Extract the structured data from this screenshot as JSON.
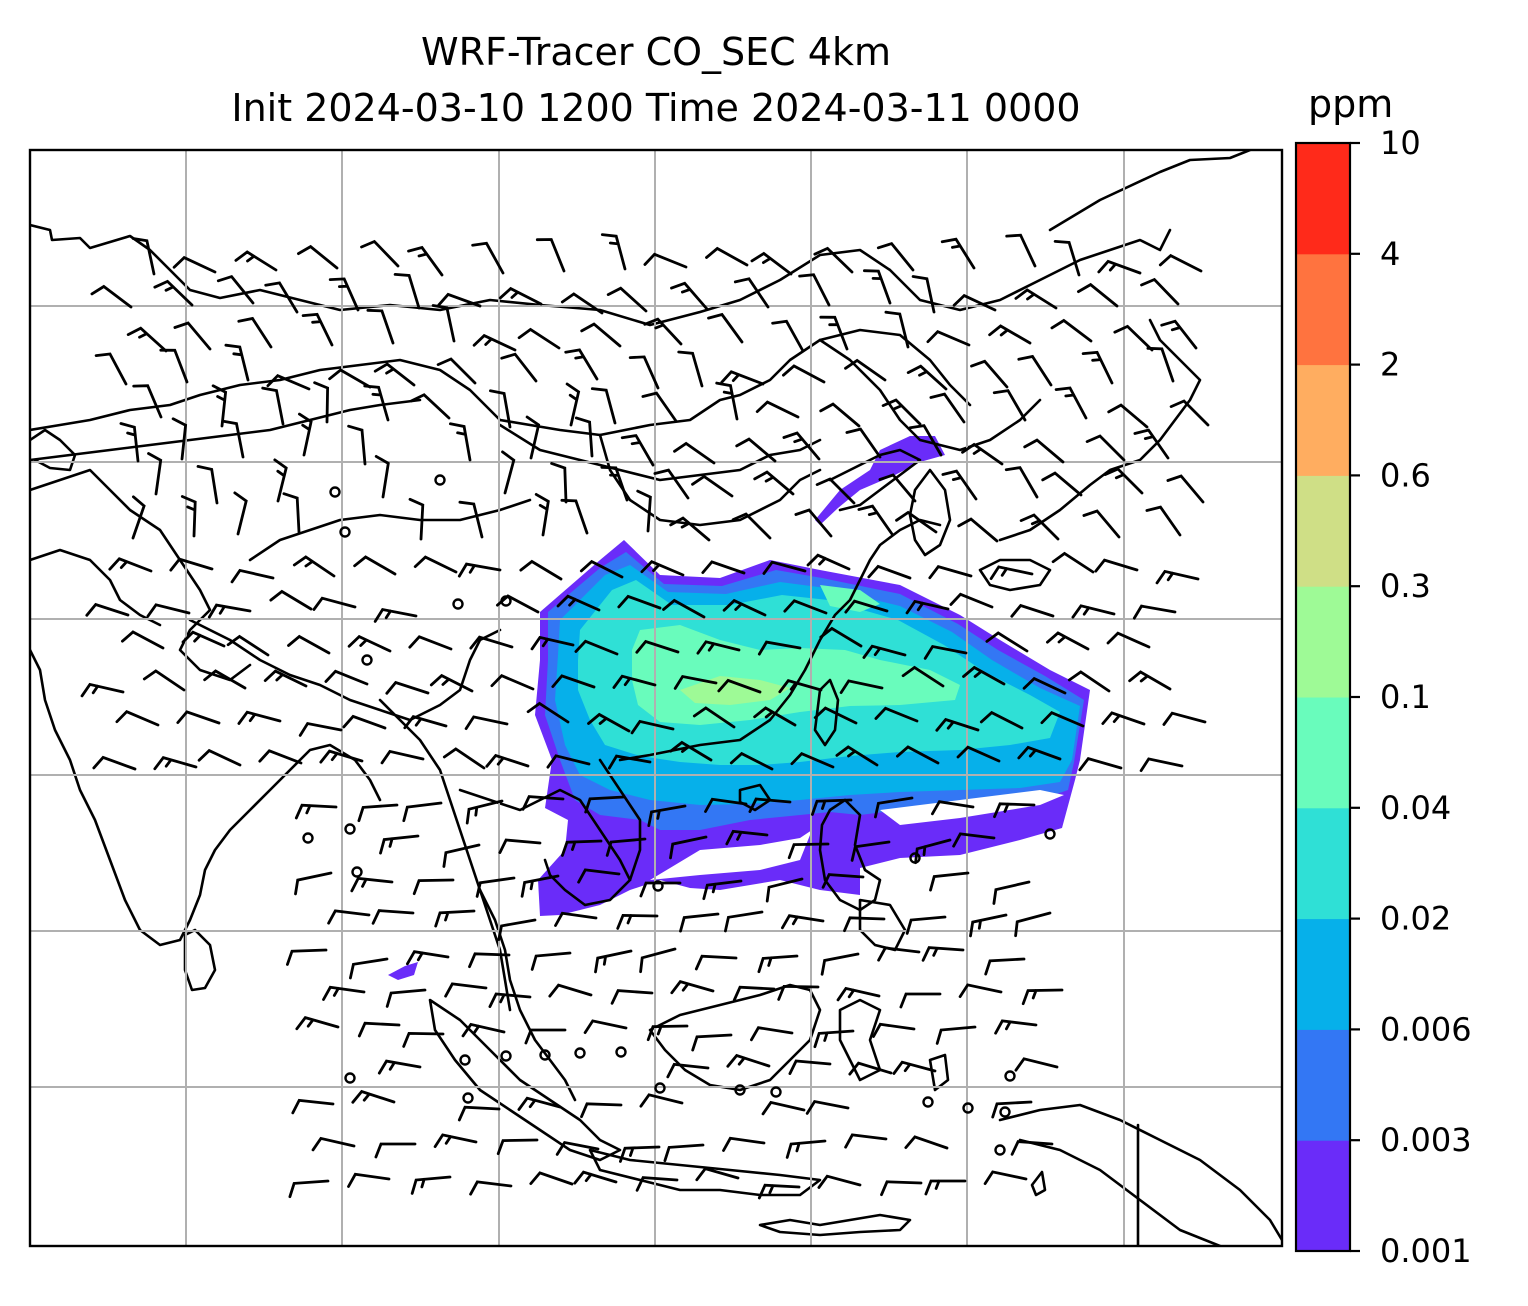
{
  "title": {
    "line1": "WRF-Tracer CO_SEC 4km",
    "line2": "Init 2024-03-10 1200 Time 2024-03-11 0000"
  },
  "colorbar": {
    "unit": "ppm",
    "levels": [
      "0.001",
      "0.003",
      "0.006",
      "0.02",
      "0.04",
      "0.1",
      "0.3",
      "0.6",
      "2",
      "4",
      "10"
    ],
    "colors": [
      "#6a2cf9",
      "#3377f4",
      "#06b0ea",
      "#2fe0d6",
      "#69fcbc",
      "#9efa96",
      "#cfdf86",
      "#ffad60",
      "#ff733f",
      "#ff2a1a"
    ]
  }
}
